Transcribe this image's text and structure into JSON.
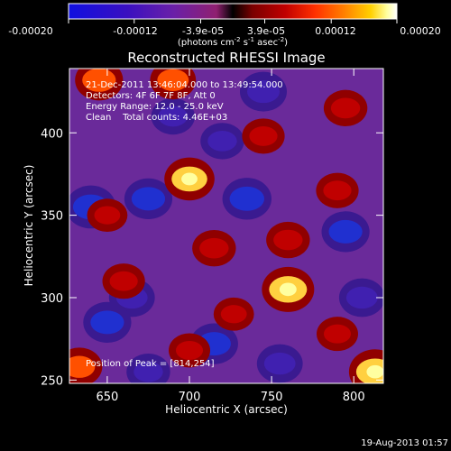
{
  "colorbar": {
    "ticks": [
      "-0.00020",
      "-0.00012",
      "-3.9e-05",
      "3.9e-05",
      "0.00012",
      "0.00020"
    ],
    "tick_values": [
      -0.0002,
      -0.00012,
      -3.9e-05,
      3.9e-05,
      0.00012,
      0.0002
    ],
    "range": [
      -0.0002,
      0.0002
    ],
    "units_main": "(photons cm",
    "units_sup1": "-2",
    "units_mid": " s",
    "units_sup2": "-1",
    "units_mid2": " asec",
    "units_sup3": "-2",
    "units_end": ")",
    "colors": [
      "#1010e0",
      "#3a10c0",
      "#6a20a8",
      "#902070",
      "#000000",
      "#7a0000",
      "#c00000",
      "#ff3000",
      "#ff8000",
      "#ffd000",
      "#ffffa0",
      "#ffffff"
    ]
  },
  "title": "Reconstructed RHESSI Image",
  "info": {
    "line1": "21-Dec-2011 13:46:04.000 to 13:49:54.000",
    "line2": "Detectors: 4F 6F 7F 8F, Att 0",
    "line3": "Energy Range: 12.0 - 25.0 keV",
    "line4": "Clean    Total counts: 4.46E+03",
    "peak": "Position of Peak = [814,254]"
  },
  "footer": {
    "timestamp": "19-Aug-2013 01:57"
  },
  "chart_data": {
    "type": "heatmap",
    "title": "Reconstructed RHESSI Image",
    "xlabel": "Heliocentric X (arcsec)",
    "ylabel": "Heliocentric Y (arcsec)",
    "xlim": [
      627,
      818
    ],
    "ylim": [
      248,
      439
    ],
    "x_ticks": [
      650,
      700,
      750,
      800
    ],
    "y_ticks": [
      250,
      300,
      350,
      400
    ],
    "peak_position": [
      814,
      254
    ],
    "colorscale": "RHESSI red-temperature, symmetric about zero",
    "hot_spots": [
      {
        "x": 700,
        "y": 372,
        "level": 0.9
      },
      {
        "x": 760,
        "y": 305,
        "level": 1.0
      },
      {
        "x": 645,
        "y": 432,
        "level": 0.8
      },
      {
        "x": 690,
        "y": 432,
        "level": 0.7
      },
      {
        "x": 795,
        "y": 415,
        "level": 0.6
      },
      {
        "x": 813,
        "y": 255,
        "level": 1.0
      },
      {
        "x": 633,
        "y": 258,
        "level": 0.7
      },
      {
        "x": 715,
        "y": 330,
        "level": 0.6
      },
      {
        "x": 760,
        "y": 335,
        "level": 0.6
      },
      {
        "x": 790,
        "y": 365,
        "level": 0.55
      },
      {
        "x": 660,
        "y": 310,
        "level": 0.55
      },
      {
        "x": 745,
        "y": 398,
        "level": 0.55
      },
      {
        "x": 790,
        "y": 278,
        "level": 0.5
      },
      {
        "x": 700,
        "y": 268,
        "level": 0.5
      },
      {
        "x": 650,
        "y": 350,
        "level": 0.45
      },
      {
        "x": 727,
        "y": 290,
        "level": 0.45
      }
    ],
    "cold_spots": [
      {
        "x": 640,
        "y": 355,
        "level": -0.9
      },
      {
        "x": 675,
        "y": 360,
        "level": -0.8
      },
      {
        "x": 665,
        "y": 300,
        "level": -0.7
      },
      {
        "x": 650,
        "y": 285,
        "level": -0.8
      },
      {
        "x": 715,
        "y": 272,
        "level": -0.8
      },
      {
        "x": 755,
        "y": 260,
        "level": -0.7
      },
      {
        "x": 735,
        "y": 360,
        "level": -0.85
      },
      {
        "x": 795,
        "y": 340,
        "level": -0.8
      },
      {
        "x": 805,
        "y": 300,
        "level": -0.7
      },
      {
        "x": 745,
        "y": 425,
        "level": -0.75
      },
      {
        "x": 690,
        "y": 410,
        "level": -0.6
      },
      {
        "x": 720,
        "y": 395,
        "level": -0.6
      },
      {
        "x": 675,
        "y": 255,
        "level": -0.6
      }
    ]
  }
}
